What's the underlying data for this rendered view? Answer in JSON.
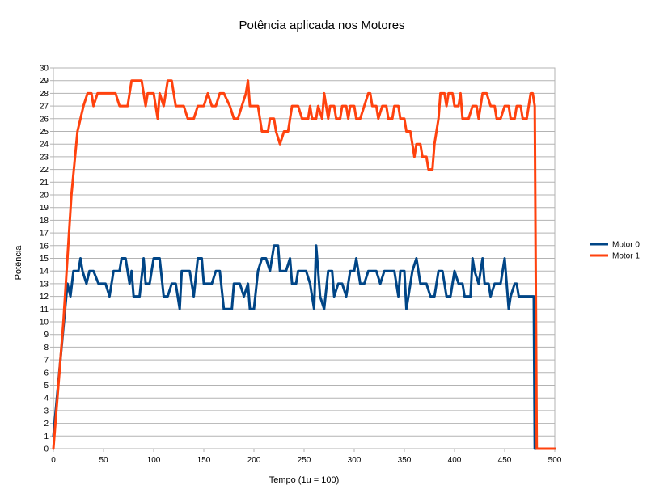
{
  "chart_data": {
    "type": "line",
    "title": "Potência aplicada nos Motores",
    "xlabel": "Tempo (1u = 100)",
    "ylabel": "Potência",
    "xlim": [
      0,
      500
    ],
    "ylim": [
      0,
      30
    ],
    "x_ticks": [
      0,
      50,
      100,
      150,
      200,
      250,
      300,
      350,
      400,
      450,
      500
    ],
    "y_ticks": [
      0,
      1,
      2,
      3,
      4,
      5,
      6,
      7,
      8,
      9,
      10,
      11,
      12,
      13,
      14,
      15,
      16,
      17,
      18,
      19,
      20,
      21,
      22,
      23,
      24,
      25,
      26,
      27,
      28,
      29,
      30
    ],
    "grid": "horizontal",
    "legend_position": "right",
    "series": [
      {
        "name": "Motor 0",
        "color": "#004586",
        "points": [
          [
            0,
            1
          ],
          [
            14,
            13
          ],
          [
            17,
            12
          ],
          [
            20,
            14
          ],
          [
            25,
            14
          ],
          [
            27,
            15
          ],
          [
            29,
            14
          ],
          [
            33,
            13
          ],
          [
            36,
            14
          ],
          [
            40,
            14
          ],
          [
            45,
            13
          ],
          [
            52,
            13
          ],
          [
            56,
            12
          ],
          [
            60,
            14
          ],
          [
            66,
            14
          ],
          [
            68,
            15
          ],
          [
            72,
            15
          ],
          [
            76,
            13
          ],
          [
            78,
            14
          ],
          [
            80,
            12
          ],
          [
            86,
            12
          ],
          [
            90,
            15
          ],
          [
            92,
            13
          ],
          [
            96,
            13
          ],
          [
            100,
            15
          ],
          [
            106,
            15
          ],
          [
            110,
            12
          ],
          [
            114,
            12
          ],
          [
            118,
            13
          ],
          [
            122,
            13
          ],
          [
            126,
            11
          ],
          [
            128,
            14
          ],
          [
            136,
            14
          ],
          [
            140,
            12
          ],
          [
            144,
            15
          ],
          [
            148,
            15
          ],
          [
            150,
            13
          ],
          [
            158,
            13
          ],
          [
            162,
            14
          ],
          [
            166,
            14
          ],
          [
            170,
            11
          ],
          [
            178,
            11
          ],
          [
            180,
            13
          ],
          [
            186,
            13
          ],
          [
            190,
            12
          ],
          [
            194,
            13
          ],
          [
            196,
            11
          ],
          [
            200,
            11
          ],
          [
            204,
            14
          ],
          [
            208,
            15
          ],
          [
            212,
            15
          ],
          [
            216,
            14
          ],
          [
            220,
            16
          ],
          [
            224,
            16
          ],
          [
            226,
            14
          ],
          [
            232,
            14
          ],
          [
            236,
            15
          ],
          [
            238,
            13
          ],
          [
            242,
            13
          ],
          [
            244,
            14
          ],
          [
            252,
            14
          ],
          [
            256,
            13
          ],
          [
            260,
            11
          ],
          [
            262,
            16
          ],
          [
            264,
            14
          ],
          [
            266,
            12
          ],
          [
            270,
            11
          ],
          [
            274,
            14
          ],
          [
            278,
            14
          ],
          [
            280,
            12
          ],
          [
            284,
            13
          ],
          [
            288,
            13
          ],
          [
            292,
            12
          ],
          [
            296,
            14
          ],
          [
            300,
            14
          ],
          [
            302,
            15
          ],
          [
            304,
            14
          ],
          [
            306,
            13
          ],
          [
            310,
            13
          ],
          [
            314,
            14
          ],
          [
            322,
            14
          ],
          [
            326,
            13
          ],
          [
            330,
            14
          ],
          [
            340,
            14
          ],
          [
            344,
            12
          ],
          [
            346,
            14
          ],
          [
            350,
            14
          ],
          [
            352,
            11
          ],
          [
            354,
            12
          ],
          [
            358,
            14
          ],
          [
            362,
            15
          ],
          [
            366,
            13
          ],
          [
            372,
            13
          ],
          [
            376,
            12
          ],
          [
            380,
            12
          ],
          [
            384,
            14
          ],
          [
            388,
            14
          ],
          [
            392,
            12
          ],
          [
            396,
            12
          ],
          [
            400,
            14
          ],
          [
            404,
            13
          ],
          [
            408,
            13
          ],
          [
            410,
            12
          ],
          [
            416,
            12
          ],
          [
            418,
            15
          ],
          [
            420,
            14
          ],
          [
            424,
            13
          ],
          [
            428,
            15
          ],
          [
            430,
            13
          ],
          [
            434,
            13
          ],
          [
            436,
            12
          ],
          [
            440,
            13
          ],
          [
            446,
            13
          ],
          [
            450,
            15
          ],
          [
            452,
            13
          ],
          [
            454,
            11
          ],
          [
            456,
            12
          ],
          [
            460,
            13
          ],
          [
            462,
            13
          ],
          [
            464,
            12
          ],
          [
            479,
            12
          ],
          [
            480,
            0
          ],
          [
            500,
            0
          ]
        ]
      },
      {
        "name": "Motor 1",
        "color": "#ff420e",
        "points": [
          [
            0,
            0
          ],
          [
            10,
            10
          ],
          [
            18,
            20
          ],
          [
            24,
            25
          ],
          [
            27,
            26
          ],
          [
            30,
            27
          ],
          [
            34,
            28
          ],
          [
            38,
            28
          ],
          [
            40,
            27
          ],
          [
            44,
            28
          ],
          [
            62,
            28
          ],
          [
            66,
            27
          ],
          [
            74,
            27
          ],
          [
            78,
            29
          ],
          [
            88,
            29
          ],
          [
            92,
            27
          ],
          [
            94,
            28
          ],
          [
            100,
            28
          ],
          [
            104,
            26
          ],
          [
            106,
            28
          ],
          [
            110,
            27
          ],
          [
            114,
            29
          ],
          [
            118,
            29
          ],
          [
            122,
            27
          ],
          [
            130,
            27
          ],
          [
            134,
            26
          ],
          [
            140,
            26
          ],
          [
            144,
            27
          ],
          [
            150,
            27
          ],
          [
            154,
            28
          ],
          [
            158,
            27
          ],
          [
            162,
            27
          ],
          [
            166,
            28
          ],
          [
            170,
            28
          ],
          [
            176,
            27
          ],
          [
            180,
            26
          ],
          [
            184,
            26
          ],
          [
            188,
            27
          ],
          [
            192,
            28
          ],
          [
            194,
            29
          ],
          [
            196,
            27
          ],
          [
            204,
            27
          ],
          [
            206,
            26
          ],
          [
            208,
            25
          ],
          [
            214,
            25
          ],
          [
            216,
            26
          ],
          [
            220,
            26
          ],
          [
            222,
            25
          ],
          [
            226,
            24
          ],
          [
            230,
            25
          ],
          [
            234,
            25
          ],
          [
            238,
            27
          ],
          [
            244,
            27
          ],
          [
            248,
            26
          ],
          [
            254,
            26
          ],
          [
            256,
            27
          ],
          [
            258,
            26
          ],
          [
            262,
            26
          ],
          [
            264,
            27
          ],
          [
            268,
            26
          ],
          [
            270,
            28
          ],
          [
            274,
            26
          ],
          [
            276,
            27
          ],
          [
            280,
            27
          ],
          [
            282,
            26
          ],
          [
            286,
            26
          ],
          [
            288,
            27
          ],
          [
            292,
            27
          ],
          [
            294,
            26
          ],
          [
            296,
            27
          ],
          [
            300,
            27
          ],
          [
            302,
            26
          ],
          [
            306,
            26
          ],
          [
            310,
            27
          ],
          [
            314,
            28
          ],
          [
            316,
            28
          ],
          [
            318,
            27
          ],
          [
            322,
            27
          ],
          [
            324,
            26
          ],
          [
            328,
            27
          ],
          [
            332,
            27
          ],
          [
            334,
            26
          ],
          [
            338,
            26
          ],
          [
            340,
            27
          ],
          [
            344,
            27
          ],
          [
            346,
            26
          ],
          [
            350,
            26
          ],
          [
            352,
            25
          ],
          [
            356,
            25
          ],
          [
            360,
            23
          ],
          [
            362,
            24
          ],
          [
            366,
            24
          ],
          [
            368,
            23
          ],
          [
            372,
            23
          ],
          [
            374,
            22
          ],
          [
            378,
            22
          ],
          [
            380,
            24
          ],
          [
            384,
            26
          ],
          [
            386,
            28
          ],
          [
            390,
            28
          ],
          [
            392,
            27
          ],
          [
            394,
            28
          ],
          [
            398,
            28
          ],
          [
            400,
            27
          ],
          [
            404,
            27
          ],
          [
            406,
            28
          ],
          [
            408,
            26
          ],
          [
            414,
            26
          ],
          [
            418,
            27
          ],
          [
            422,
            27
          ],
          [
            424,
            26
          ],
          [
            428,
            28
          ],
          [
            432,
            28
          ],
          [
            436,
            27
          ],
          [
            440,
            27
          ],
          [
            442,
            26
          ],
          [
            446,
            26
          ],
          [
            450,
            27
          ],
          [
            454,
            27
          ],
          [
            456,
            26
          ],
          [
            460,
            26
          ],
          [
            462,
            27
          ],
          [
            466,
            27
          ],
          [
            468,
            26
          ],
          [
            472,
            26
          ],
          [
            476,
            28
          ],
          [
            478,
            28
          ],
          [
            480,
            27
          ],
          [
            482,
            0
          ],
          [
            500,
            0
          ]
        ]
      }
    ]
  }
}
